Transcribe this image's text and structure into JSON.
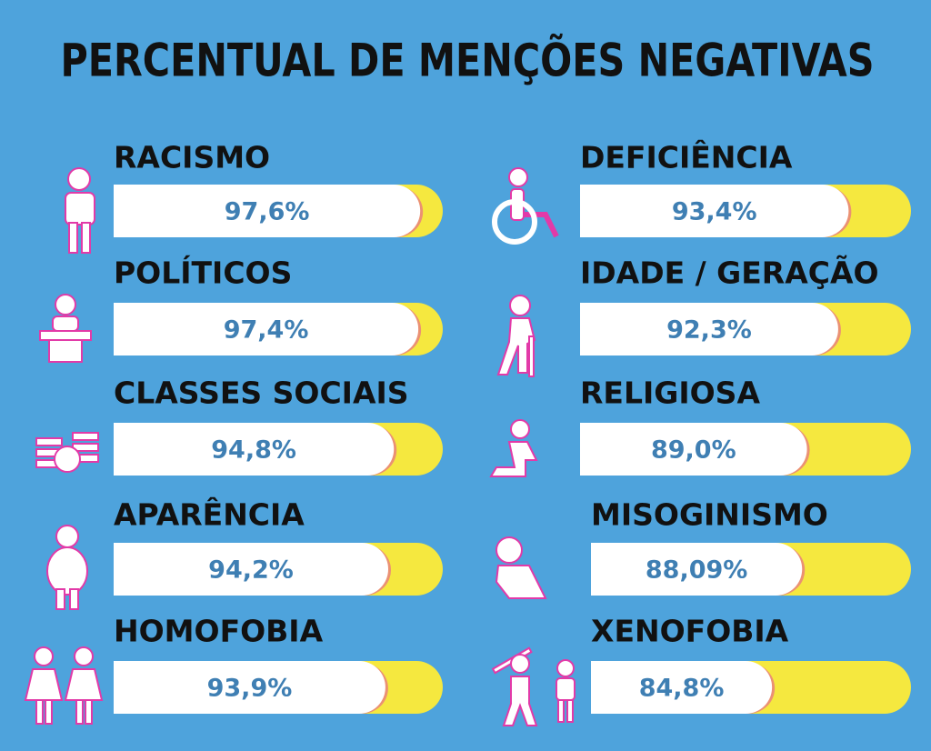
{
  "chart_data": {
    "type": "progress",
    "title": "PERCENTUAL DE MENÇÕES NEGATIVAS",
    "categories": [
      "RACISMO",
      "POLÍTICOS",
      "CLASSES SOCIAIS",
      "APARÊNCIA",
      "HOMOFOBIA",
      "DEFICIÊNCIA",
      "IDADE / GERAÇÃO",
      "RELIGIOSA",
      "MISOGINISMO",
      "XENOFOBIA"
    ],
    "values": [
      97.6,
      97.4,
      94.8,
      94.2,
      93.9,
      93.4,
      92.3,
      89.0,
      88.09,
      84.8
    ],
    "value_labels": [
      "97,6%",
      "97,4%",
      "94,8%",
      "94,2%",
      "93,9%",
      "93,4%",
      "92,3%",
      "89,0%",
      "88,09%",
      "84,8%"
    ],
    "xlim": [
      65,
      100
    ],
    "color": "#ffffff",
    "track_color": "#f5e83f"
  }
}
